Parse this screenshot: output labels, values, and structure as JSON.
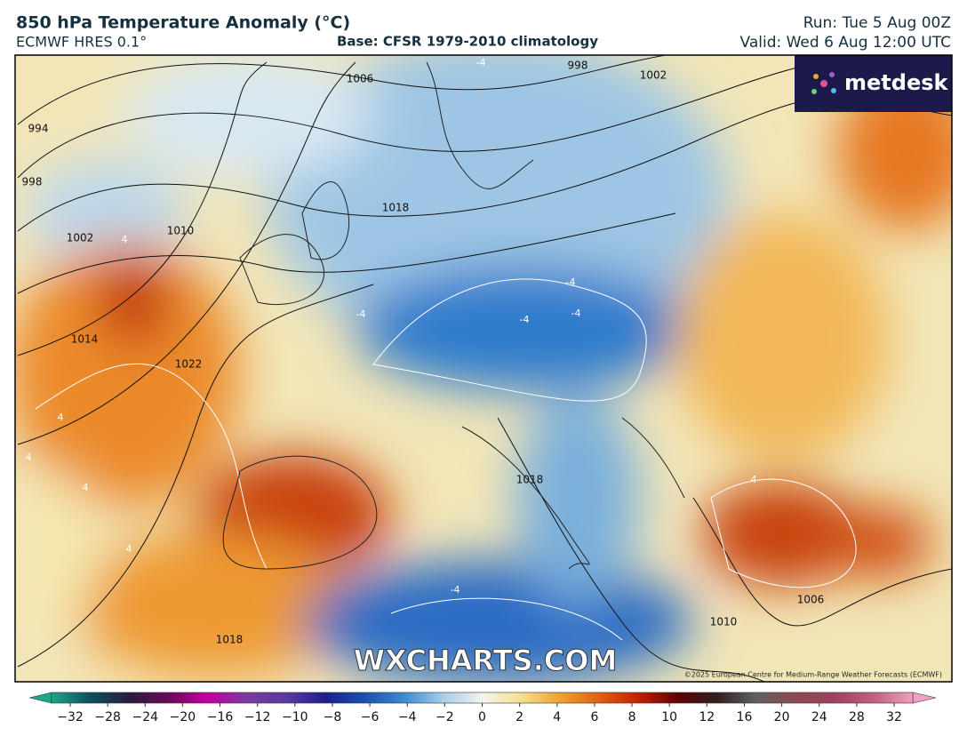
{
  "header": {
    "title": "850 hPa Temperature Anomaly (°C)",
    "model": "ECMWF HRES 0.1°",
    "base": "Base: CFSR 1979-2010 climatology",
    "run": "Run: Tue 5 Aug 00Z",
    "valid": "Valid: Wed 6 Aug 12:00 UTC"
  },
  "map": {
    "logo": "metdesk",
    "watermark": "WXCHARTS.COM",
    "copyright": "©2025 European Centre for Medium-Range Weather Forecasts (ECMWF)",
    "isobar_labels": [
      1006,
      994,
      998,
      1002,
      1010,
      1014,
      1022,
      1018,
      1018,
      1010,
      1006,
      998,
      1002,
      1018
    ],
    "anomaly_labels": [
      -4,
      -4,
      -4,
      -4,
      -4,
      -4,
      4,
      4,
      4,
      4,
      4,
      4
    ]
  },
  "colorbar": {
    "ticks": [
      {
        "value": -32,
        "label": "−32"
      },
      {
        "value": -28,
        "label": "−28"
      },
      {
        "value": -24,
        "label": "−24"
      },
      {
        "value": -20,
        "label": "−20"
      },
      {
        "value": -16,
        "label": "−16"
      },
      {
        "value": -12,
        "label": "−12"
      },
      {
        "value": -10,
        "label": "−10"
      },
      {
        "value": -8,
        "label": "−8"
      },
      {
        "value": -6,
        "label": "−6"
      },
      {
        "value": -4,
        "label": "−4"
      },
      {
        "value": -2,
        "label": "−2"
      },
      0,
      2,
      4,
      6,
      8,
      10,
      12,
      16,
      20,
      24,
      28,
      32
    ],
    "colors": [
      "#1fa58a",
      "#0b4f5e",
      "#2b1a3a",
      "#6a0a5a",
      "#c000a0",
      "#7a3aa0",
      "#5a3aa0",
      "#1e1e8c",
      "#1a50b0",
      "#3c8ad0",
      "#a8cde8",
      "#f4f4f0",
      "#f5e090",
      "#f0a030",
      "#e06010",
      "#c02000",
      "#600000",
      "#302020",
      "#606060",
      "#8a4a50",
      "#a04060",
      "#c06080",
      "#f0a0c0"
    ]
  }
}
